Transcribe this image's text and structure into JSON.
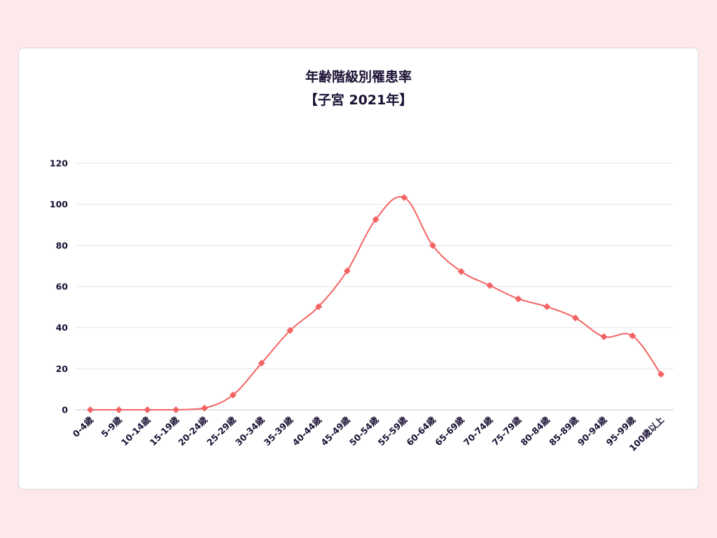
{
  "title_line1": "年齢階級別罹患率",
  "title_line2": "【子宮 2021年】",
  "colors": {
    "line": "#f46363",
    "marker": "#f46363",
    "text": "#1a1033",
    "background": "#fde8ea",
    "card": "#ffffff"
  },
  "chart_data": {
    "type": "line",
    "title": "年齢階級別罹患率 【子宮 2021年】",
    "xlabel": "",
    "ylabel": "",
    "ylim": [
      0,
      120
    ],
    "yticks": [
      0,
      20,
      40,
      60,
      80,
      100,
      120
    ],
    "grid": true,
    "smooth": true,
    "marker": "diamond",
    "categories": [
      "0-4歳",
      "5-9歳",
      "10-14歳",
      "15-19歳",
      "20-24歳",
      "25-29歳",
      "30-34歳",
      "35-39歳",
      "40-44歳",
      "45-49歳",
      "50-54歳",
      "55-59歳",
      "60-64歳",
      "65-69歳",
      "70-74歳",
      "75-79歳",
      "80-84歳",
      "85-89歳",
      "90-94歳",
      "95-99歳",
      "100歳以上"
    ],
    "values": [
      0,
      0,
      0,
      0,
      0.8,
      7.2,
      22.7,
      38.6,
      50.2,
      67.6,
      92.6,
      103.3,
      80.0,
      67.3,
      60.5,
      54.0,
      50.2,
      44.7,
      35.6,
      36.0,
      17.3
    ]
  }
}
